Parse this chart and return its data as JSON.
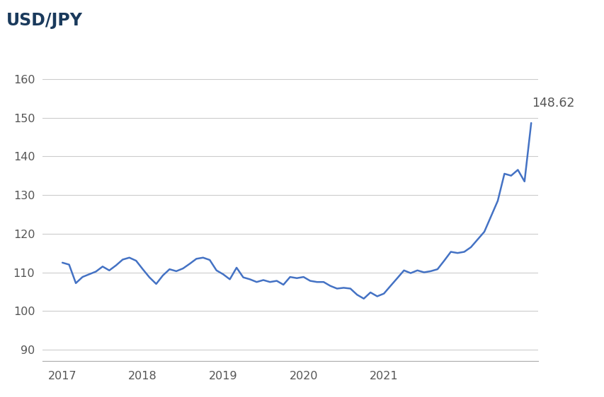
{
  "title": "USD/JPY",
  "title_color": "#1a3a5c",
  "line_color": "#4472c4",
  "background_color": "#ffffff",
  "grid_color": "#cccccc",
  "annotation_value": "148.62",
  "annotation_color": "#555555",
  "ylim": [
    87,
    164
  ],
  "yticks": [
    90,
    100,
    110,
    120,
    130,
    140,
    150,
    160
  ],
  "x_data": [
    2017.0,
    2017.083,
    2017.167,
    2017.25,
    2017.333,
    2017.417,
    2017.5,
    2017.583,
    2017.667,
    2017.75,
    2017.833,
    2017.917,
    2018.0,
    2018.083,
    2018.167,
    2018.25,
    2018.333,
    2018.417,
    2018.5,
    2018.583,
    2018.667,
    2018.75,
    2018.833,
    2018.917,
    2019.0,
    2019.083,
    2019.167,
    2019.25,
    2019.333,
    2019.417,
    2019.5,
    2019.583,
    2019.667,
    2019.75,
    2019.833,
    2019.917,
    2020.0,
    2020.083,
    2020.167,
    2020.25,
    2020.333,
    2020.417,
    2020.5,
    2020.583,
    2020.667,
    2020.75,
    2020.833,
    2020.917,
    2021.0,
    2021.083,
    2021.167,
    2021.25,
    2021.333,
    2021.417,
    2021.5,
    2021.583,
    2021.667,
    2021.75,
    2021.833,
    2021.917,
    2022.0,
    2022.083,
    2022.25,
    2022.417,
    2022.5,
    2022.583,
    2022.667,
    2022.75,
    2022.833
  ],
  "y_data": [
    112.5,
    112.0,
    107.2,
    108.8,
    109.5,
    110.2,
    111.5,
    110.5,
    111.8,
    113.3,
    113.8,
    113.0,
    110.8,
    108.7,
    107.0,
    109.2,
    110.8,
    110.3,
    111.0,
    112.2,
    113.5,
    113.8,
    113.2,
    110.5,
    109.5,
    108.2,
    111.2,
    108.7,
    108.2,
    107.5,
    108.0,
    107.5,
    107.8,
    106.8,
    108.8,
    108.5,
    108.8,
    107.8,
    107.5,
    107.5,
    106.5,
    105.8,
    106.0,
    105.8,
    104.2,
    103.2,
    104.8,
    103.8,
    104.5,
    106.5,
    108.5,
    110.5,
    109.8,
    110.5,
    110.0,
    110.3,
    110.8,
    113.0,
    115.3,
    115.0,
    115.3,
    116.5,
    120.5,
    128.5,
    135.5,
    135.0,
    136.5,
    133.5,
    148.62
  ],
  "xlim": [
    2016.75,
    2022.92
  ],
  "xtick_positions": [
    2017.0,
    2018.0,
    2019.0,
    2020.0,
    2021.0
  ],
  "xtick_labels": [
    "2017",
    "2018",
    "2019",
    "2020",
    "2021"
  ]
}
